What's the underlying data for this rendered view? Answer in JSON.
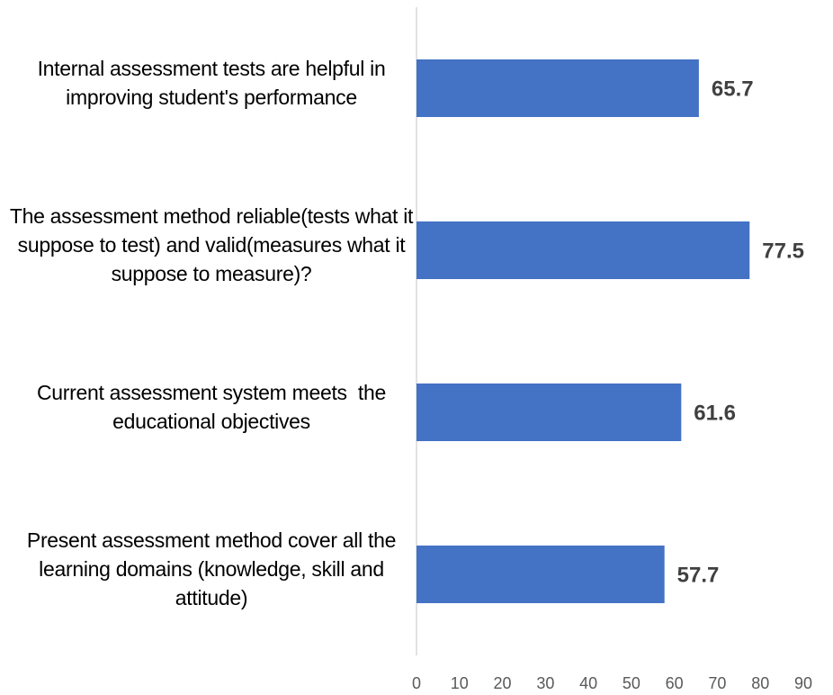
{
  "chart_data": {
    "type": "barh",
    "categories": [
      "Internal assessment tests are helpful in improving student's performance",
      "The assessment method reliable(tests what it suppose to test) and valid(measures what it suppose to measure)?",
      "Current assessment system meets  the educational objectives",
      "Present assessment method cover all the learning domains (knowledge, skill and attitude)"
    ],
    "values": [
      65.7,
      77.5,
      61.6,
      57.7
    ],
    "color": "#4472c4",
    "xlim": [
      0,
      90
    ],
    "xticks": [
      0,
      10,
      20,
      30,
      40,
      50,
      60,
      70,
      80,
      90
    ],
    "grid": false
  }
}
